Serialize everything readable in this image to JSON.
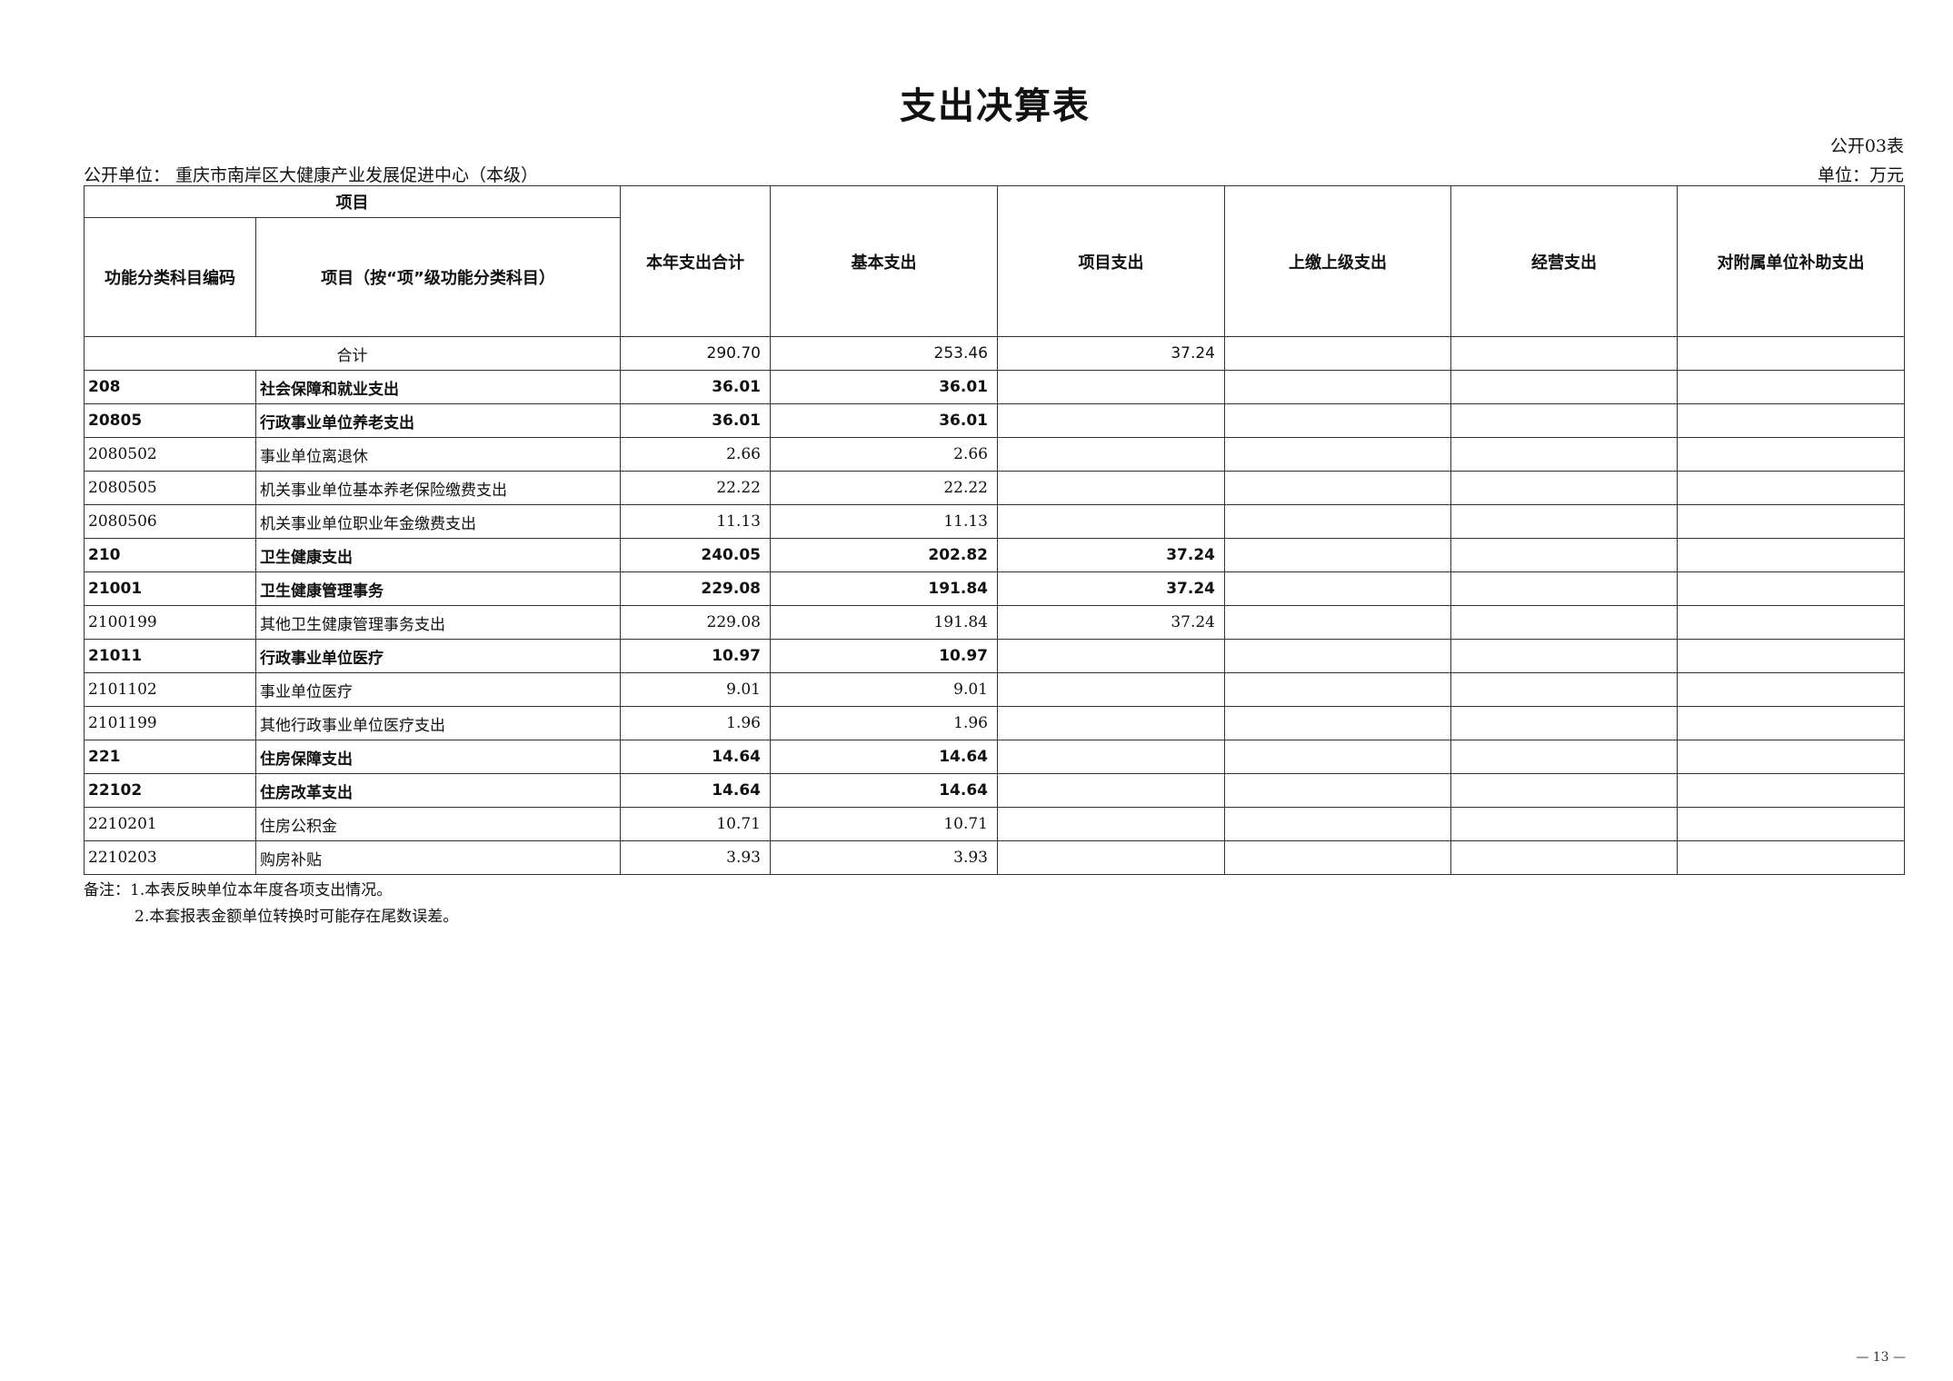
{
  "title": "支出决算表",
  "table_code": "公开03表",
  "org_label": "公开单位：  重庆市南岸区大健康产业发展促进中心（本级）",
  "unit_label": "单位：万元",
  "headers": {
    "group": "项目",
    "code": "功能分类科目编码",
    "name": "项目（按“项”级功能分类科目）",
    "total": "本年支出合计",
    "basic": "基本支出",
    "project": "项目支出",
    "upper": "上缴上级支出",
    "business": "经营支出",
    "subsidy": "对附属单位补助支出"
  },
  "total_row": {
    "label": "合计",
    "total": "290.70",
    "basic": "253.46",
    "project": "37.24",
    "upper": "",
    "business": "",
    "subsidy": ""
  },
  "rows": [
    {
      "code": "208",
      "name": "社会保障和就业支出",
      "total": "36.01",
      "basic": "36.01",
      "project": "",
      "bold": true
    },
    {
      "code": "20805",
      "name": "行政事业单位养老支出",
      "total": "36.01",
      "basic": "36.01",
      "project": "",
      "bold": true
    },
    {
      "code": "2080502",
      "name": "事业单位离退休",
      "total": "2.66",
      "basic": "2.66",
      "project": "",
      "bold": false
    },
    {
      "code": "2080505",
      "name": "机关事业单位基本养老保险缴费支出",
      "total": "22.22",
      "basic": "22.22",
      "project": "",
      "bold": false
    },
    {
      "code": "2080506",
      "name": "机关事业单位职业年金缴费支出",
      "total": "11.13",
      "basic": "11.13",
      "project": "",
      "bold": false
    },
    {
      "code": "210",
      "name": "卫生健康支出",
      "total": "240.05",
      "basic": "202.82",
      "project": "37.24",
      "bold": true
    },
    {
      "code": "21001",
      "name": "卫生健康管理事务",
      "total": "229.08",
      "basic": "191.84",
      "project": "37.24",
      "bold": true
    },
    {
      "code": "2100199",
      "name": "其他卫生健康管理事务支出",
      "total": "229.08",
      "basic": "191.84",
      "project": "37.24",
      "bold": false
    },
    {
      "code": "21011",
      "name": "行政事业单位医疗",
      "total": "10.97",
      "basic": "10.97",
      "project": "",
      "bold": true
    },
    {
      "code": "2101102",
      "name": "事业单位医疗",
      "total": "9.01",
      "basic": "9.01",
      "project": "",
      "bold": false
    },
    {
      "code": "2101199",
      "name": "其他行政事业单位医疗支出",
      "total": "1.96",
      "basic": "1.96",
      "project": "",
      "bold": false
    },
    {
      "code": "221",
      "name": "住房保障支出",
      "total": "14.64",
      "basic": "14.64",
      "project": "",
      "bold": true
    },
    {
      "code": "22102",
      "name": "住房改革支出",
      "total": "14.64",
      "basic": "14.64",
      "project": "",
      "bold": true
    },
    {
      "code": "2210201",
      "name": "住房公积金",
      "total": "10.71",
      "basic": "10.71",
      "project": "",
      "bold": false
    },
    {
      "code": "2210203",
      "name": "购房补贴",
      "total": "3.93",
      "basic": "3.93",
      "project": "",
      "bold": false
    }
  ],
  "notes": [
    "备注：1.本表反映单位本年度各项支出情况。",
    "2.本套报表金额单位转换时可能存在尾数误差。"
  ],
  "page_number": "— 13 —"
}
